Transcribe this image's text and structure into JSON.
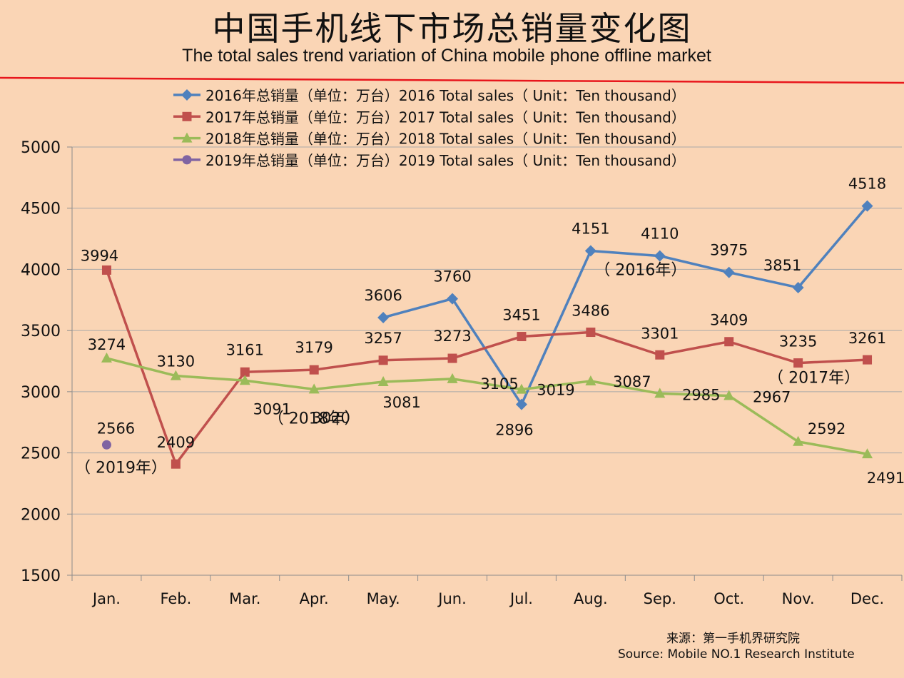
{
  "title_cn": "中国手机线下市场总销量变化图",
  "title_en": "The total sales trend variation of China mobile phone offline market",
  "source_cn": "来源：第一手机界研究院",
  "source_en": "Source: Mobile NO.1 Research Institute",
  "colors": {
    "background": "#fad5b5",
    "divider": "#e8161c",
    "grid": "#a9a9a9",
    "axis": "#8c8c8c"
  },
  "chart_data": {
    "type": "line",
    "categories": [
      "Jan.",
      "Feb.",
      "Mar.",
      "Apr.",
      "May.",
      "Jun.",
      "Jul.",
      "Aug.",
      "Sep.",
      "Oct.",
      "Nov.",
      "Dec."
    ],
    "ylim": [
      1500,
      5000
    ],
    "yticks": [
      5000,
      4500,
      4000,
      3500,
      3000,
      2500,
      2000,
      1500
    ],
    "grid": true,
    "legend_position": "top",
    "series": [
      {
        "name": "2016年总销量（单位：万台）2016 Total sales（ Unit：Ten thousand）",
        "color": "#4f81bd",
        "marker": "diamond",
        "values": [
          null,
          null,
          null,
          null,
          3606,
          3760,
          2896,
          4151,
          4110,
          3975,
          3851,
          4518
        ]
      },
      {
        "name": "2017年总销量（单位：万台）2017 Total sales（ Unit：Ten thousand）",
        "color": "#c0504d",
        "marker": "square",
        "values": [
          3994,
          2409,
          3161,
          3179,
          3257,
          3273,
          3451,
          3486,
          3301,
          3409,
          3235,
          3261
        ]
      },
      {
        "name": "2018年总销量（单位：万台）2018 Total sales（ Unit：Ten thousand）",
        "color": "#9bbb59",
        "marker": "triangle",
        "values": [
          3274,
          3130,
          3091,
          3020,
          3081,
          3105,
          3019,
          3087,
          2985,
          2967,
          2592,
          2491
        ]
      },
      {
        "name": "2019年总销量（单位：万台）2019 Total sales（ Unit：Ten thousand）",
        "color": "#8064a2",
        "marker": "circle",
        "values": [
          2566,
          null,
          null,
          null,
          null,
          null,
          null,
          null,
          null,
          null,
          null,
          null
        ]
      }
    ],
    "annotations": [
      {
        "text": "（ 2016年）",
        "series": 0,
        "index": 7
      },
      {
        "text": "（ 2017年）",
        "series": 1,
        "index": 10
      },
      {
        "text": "（ 2018年）",
        "series": 2,
        "index": 3
      },
      {
        "text": "（ 2019年）",
        "series": 3,
        "index": 0
      }
    ]
  }
}
